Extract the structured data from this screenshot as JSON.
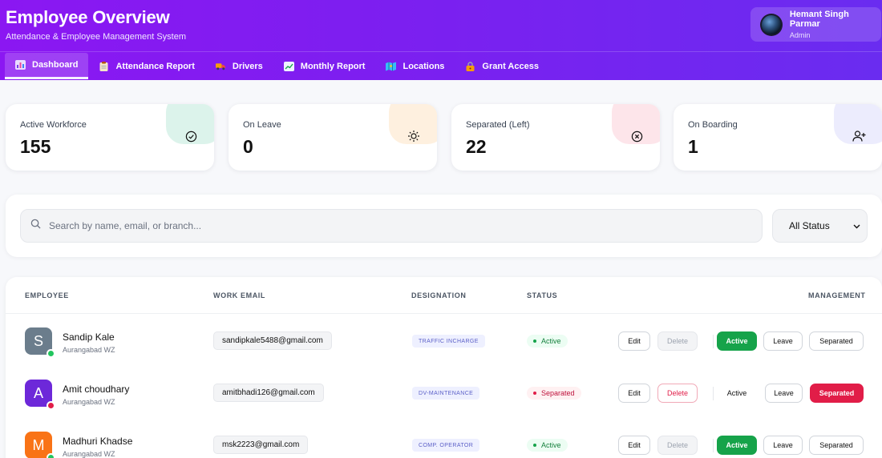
{
  "header": {
    "title": "Employee Overview",
    "subtitle": "Attendance & Employee Management System",
    "user": {
      "name": "Hemant Singh Parmar",
      "role": "Admin"
    }
  },
  "tabs": [
    {
      "label": "Dashboard",
      "icon": "bar-chart-icon",
      "active": true
    },
    {
      "label": "Attendance Report",
      "icon": "clipboard-icon"
    },
    {
      "label": "Drivers",
      "icon": "truck-icon"
    },
    {
      "label": "Monthly Report",
      "icon": "line-chart-icon"
    },
    {
      "label": "Locations",
      "icon": "map-icon"
    },
    {
      "label": "Grant Access",
      "icon": "lock-icon"
    }
  ],
  "stats": [
    {
      "label": "Active Workforce",
      "value": "155",
      "icon": "check-circle-icon",
      "tint": "#bfeadb"
    },
    {
      "label": "On Leave",
      "value": "0",
      "icon": "sun-icon",
      "tint": "#fde3c4"
    },
    {
      "label": "Separated (Left)",
      "value": "22",
      "icon": "x-circle-icon",
      "tint": "#fbd0d8"
    },
    {
      "label": "On Boarding",
      "value": "1",
      "icon": "user-plus-icon",
      "tint": "#dcdcfb"
    }
  ],
  "filter": {
    "search_placeholder": "Search by name, email, or branch...",
    "status_selected": "All Status"
  },
  "table": {
    "columns": {
      "employee": "EMPLOYEE",
      "email": "WORK EMAIL",
      "designation": "DESIGNATION",
      "status": "STATUS",
      "management": "MANAGEMENT"
    },
    "actions": {
      "edit": "Edit",
      "delete": "Delete",
      "active": "Active",
      "leave": "Leave",
      "separated": "Separated"
    },
    "rows": [
      {
        "initial": "S",
        "name": "Sandip Kale",
        "branch": "Aurangabad WZ",
        "email": "sandipkale5488@gmail.com",
        "designation": "TRAFFIC INCHARGE",
        "status": "Active",
        "avatar_color": "#6b7d8c",
        "dot_color": "#22c55e"
      },
      {
        "initial": "A",
        "name": "Amit choudhary",
        "branch": "Aurangabad WZ",
        "email": "amitbhadi126@gmail.com",
        "designation": "DV-MAINTENANCE",
        "status": "Separated",
        "avatar_color": "#6d28d9",
        "dot_color": "#e11d48"
      },
      {
        "initial": "M",
        "name": "Madhuri Khadse",
        "branch": "Aurangabad WZ",
        "email": "msk2223@gmail.com",
        "designation": "COMP. OPERATOR",
        "status": "Active",
        "avatar_color": "#f97316",
        "dot_color": "#22c55e"
      }
    ]
  },
  "colors": {
    "header_gradient_start": "#8b17f2",
    "header_gradient_end": "#6a2cf0",
    "active_green": "#16a34a",
    "separated_red": "#e11d48"
  }
}
